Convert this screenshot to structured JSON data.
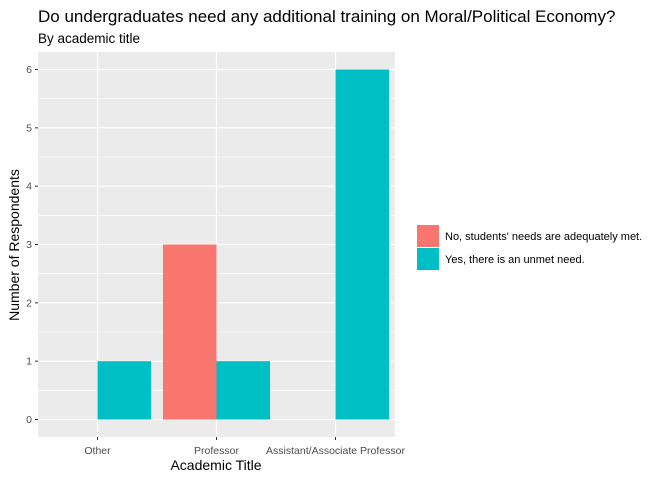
{
  "chart_data": {
    "type": "bar",
    "title": "Do undergraduates need any additional training on Moral/Political Economy?",
    "subtitle": "By academic title",
    "xlabel": "Academic Title",
    "ylabel": "Number of Respondents",
    "categories": [
      "Other",
      "Professor",
      "Assistant/Associate Professor"
    ],
    "series": [
      {
        "name": "No, students' needs are adequately met.",
        "color": "#F8766D",
        "values": [
          null,
          3,
          null
        ]
      },
      {
        "name": "Yes, there is an unmet need.",
        "color": "#00BFC4",
        "values": [
          1,
          1,
          6
        ]
      }
    ],
    "ylim": [
      -0.3,
      6.3
    ],
    "yticks": [
      0,
      1,
      2,
      3,
      4,
      5,
      6
    ],
    "grid": true,
    "legend_position": "right",
    "panel_color": "#EBEBEB",
    "grid_color": "#FFFFFF"
  }
}
